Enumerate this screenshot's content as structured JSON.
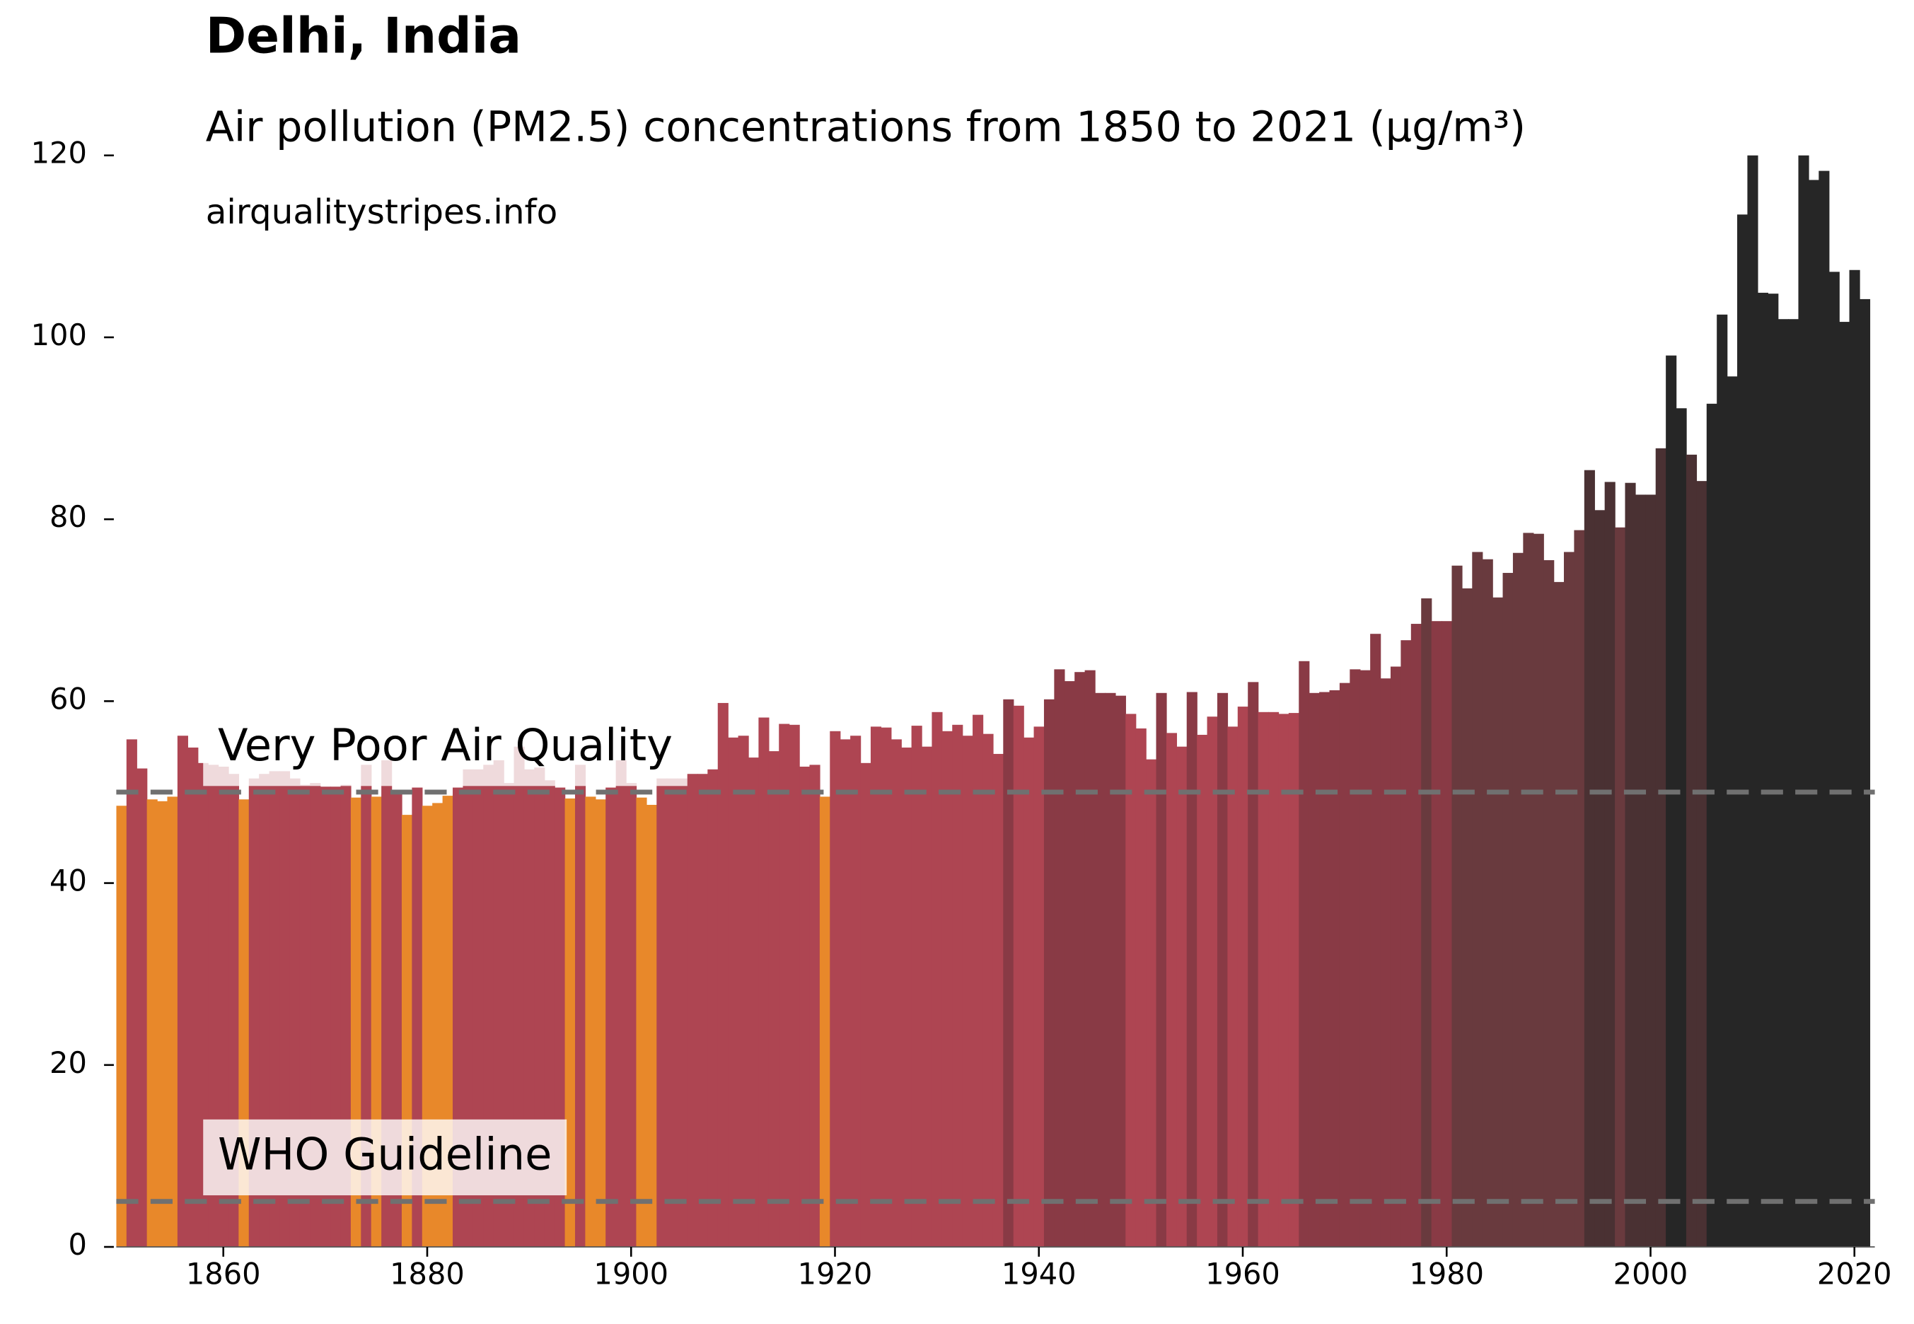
{
  "chart_data": {
    "type": "bar",
    "title": "Delhi, India",
    "subtitle": "Air pollution (PM2.5) concentrations from 1850 to 2021 (µg/m³)",
    "source": "airqualitystripes.info",
    "x": [
      1850,
      1851,
      1852,
      1853,
      1854,
      1855,
      1856,
      1857,
      1858,
      1859,
      1860,
      1861,
      1862,
      1863,
      1864,
      1865,
      1866,
      1867,
      1868,
      1869,
      1870,
      1871,
      1872,
      1873,
      1874,
      1875,
      1876,
      1877,
      1878,
      1879,
      1880,
      1881,
      1882,
      1883,
      1884,
      1885,
      1886,
      1887,
      1888,
      1889,
      1890,
      1891,
      1892,
      1893,
      1894,
      1895,
      1896,
      1897,
      1898,
      1899,
      1900,
      1901,
      1902,
      1903,
      1904,
      1905,
      1906,
      1907,
      1908,
      1909,
      1910,
      1911,
      1912,
      1913,
      1914,
      1915,
      1916,
      1917,
      1918,
      1919,
      1920,
      1921,
      1922,
      1923,
      1924,
      1925,
      1926,
      1927,
      1928,
      1929,
      1930,
      1931,
      1932,
      1933,
      1934,
      1935,
      1936,
      1937,
      1938,
      1939,
      1940,
      1941,
      1942,
      1943,
      1944,
      1945,
      1946,
      1947,
      1948,
      1949,
      1950,
      1951,
      1952,
      1953,
      1954,
      1955,
      1956,
      1957,
      1958,
      1959,
      1960,
      1961,
      1962,
      1963,
      1964,
      1965,
      1966,
      1967,
      1968,
      1969,
      1970,
      1971,
      1972,
      1973,
      1974,
      1975,
      1976,
      1977,
      1978,
      1979,
      1980,
      1981,
      1982,
      1983,
      1984,
      1985,
      1986,
      1987,
      1988,
      1989,
      1990,
      1991,
      1992,
      1993,
      1994,
      1995,
      1996,
      1997,
      1998,
      1999,
      2000,
      2001,
      2002,
      2003,
      2004,
      2005,
      2006,
      2007,
      2008,
      2009,
      2010,
      2011,
      2012,
      2013,
      2014,
      2015,
      2016,
      2017,
      2018,
      2019,
      2020,
      2021
    ],
    "values": [
      48.5,
      55.8,
      52.6,
      49.2,
      49.0,
      49.5,
      56.2,
      54.9,
      53.2,
      53,
      52.8,
      52,
      49.2,
      51.5,
      52,
      52.3,
      52.3,
      51.5,
      50.8,
      51,
      50.6,
      50.6,
      50.8,
      49.4,
      53,
      49.5,
      53.5,
      50.2,
      47.5,
      50.5,
      48.5,
      48.8,
      49.6,
      50.5,
      52.5,
      52.5,
      53,
      53.5,
      51,
      55,
      52.5,
      52.7,
      51.3,
      50.5,
      49.3,
      53,
      49.5,
      49.2,
      50.5,
      53.5,
      51,
      49.4,
      48.6,
      51.5,
      51.5,
      51.5,
      52,
      52,
      52.5,
      59.8,
      56,
      56.2,
      53.8,
      58.2,
      54.5,
      57.5,
      57.4,
      52.8,
      53,
      49.5,
      56.7,
      55.8,
      56.2,
      53.2,
      57.2,
      57.1,
      55.8,
      54.9,
      57.3,
      55,
      58.8,
      56.7,
      57.4,
      56.2,
      58.5,
      56.4,
      54.2,
      60.2,
      59.5,
      56,
      57.2,
      60.2,
      63.5,
      62.2,
      63.2,
      63.4,
      60.9,
      60.9,
      60.6,
      58.6,
      57,
      53.6,
      60.9,
      56.5,
      55,
      61,
      56.3,
      58.3,
      60.9,
      57.2,
      59.4,
      62.1,
      58.8,
      58.8,
      58.6,
      58.7,
      64.4,
      60.9,
      61,
      61.2,
      62,
      63.5,
      63.4,
      67.4,
      62.5,
      63.8,
      66.7,
      68.5,
      71.3,
      68.8,
      68.8,
      74.9,
      72.4,
      76.4,
      75.6,
      71.4,
      74.1,
      76.3,
      78.5,
      78.4,
      75.5,
      73.1,
      76.4,
      78.8,
      85.4,
      81,
      84.1,
      79.1,
      84,
      82.7,
      82.7,
      87.8,
      98,
      92.2,
      87.1,
      84.2,
      92.7,
      102.5,
      95.7,
      113.5,
      121,
      104.9,
      104.8,
      102,
      102,
      121,
      117.3,
      118.3,
      107.2,
      101.7,
      107.4,
      104.2
    ],
    "color_bins": {
      "edges": [
        50,
        60,
        70,
        80,
        90
      ],
      "colors": [
        "#e8882a",
        "#ae4552",
        "#893a45",
        "#693a3e",
        "#4a3133",
        "#262626"
      ]
    },
    "xlim": [
      1849.5,
      2022
    ],
    "ylim": [
      0,
      120
    ],
    "xticks": [
      1860,
      1880,
      1900,
      1920,
      1940,
      1960,
      1980,
      2000,
      2020
    ],
    "yticks": [
      0,
      20,
      40,
      60,
      80,
      100,
      120
    ],
    "reference_lines": [
      {
        "value": 50,
        "label": "Very Poor Air Quality"
      },
      {
        "value": 5,
        "label": "WHO Guideline"
      }
    ]
  }
}
